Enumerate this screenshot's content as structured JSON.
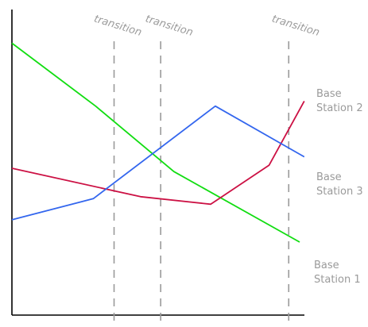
{
  "chart_data": {
    "type": "line",
    "title": "",
    "xlabel": "",
    "ylabel": "",
    "grid": false,
    "xlim": [
      0,
      100
    ],
    "ylim": [
      0,
      100
    ],
    "transitions": [
      {
        "x": 35.5,
        "label": "transition"
      },
      {
        "x": 51.7,
        "label": "transition"
      },
      {
        "x": 96.2,
        "label": "transition"
      }
    ],
    "series": [
      {
        "name": "Base Station 1",
        "label_lines": [
          "Base",
          "Station 1"
        ],
        "color": "#11dd11",
        "x": [
          0,
          29.1,
          56.3,
          100
        ],
        "y": [
          90.2,
          67.6,
          44.1,
          18.8
        ]
      },
      {
        "name": "Base Station 2",
        "label_lines": [
          "Base",
          "Station 2"
        ],
        "color": "#cc1144",
        "x": [
          0,
          44.7,
          69.1,
          89.4,
          101.6
        ],
        "y": [
          45.3,
          35.1,
          32.4,
          46.4,
          69.4
        ]
      },
      {
        "name": "Base Station 3",
        "label_lines": [
          "Base",
          "Station 3"
        ],
        "color": "#3366ee",
        "x": [
          0,
          28.3,
          70.7,
          101.6
        ],
        "y": [
          26.8,
          34.4,
          67.6,
          49.4
        ]
      }
    ]
  }
}
